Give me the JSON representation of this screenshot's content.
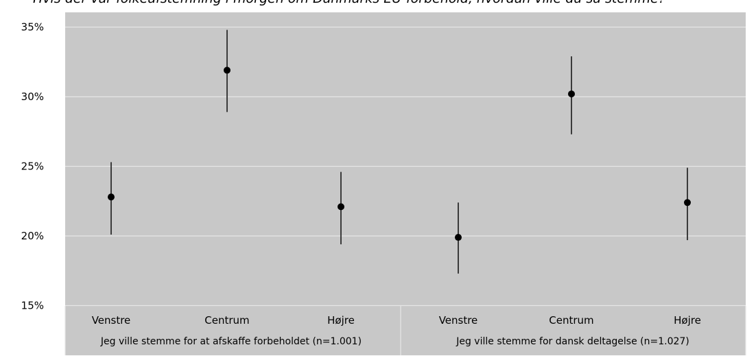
{
  "chart_data": {
    "type": "scatter",
    "title": "Hvis der var folkeafstemning i morgen om Danmarks EU-forbehold, hvordan ville du så stemme?",
    "ylim": [
      15,
      35
    ],
    "yticks": [
      15,
      20,
      25,
      30,
      35
    ],
    "ytick_labels": [
      "15%",
      "20%",
      "25%",
      "30%",
      "35%"
    ],
    "grid": true,
    "groups": [
      {
        "label": "Jeg ville stemme for at afskaffe forbeholdet (n=1.001)",
        "categories": [
          "Venstre",
          "Centrum",
          "Højre"
        ],
        "values": [
          22.8,
          31.9,
          22.1
        ],
        "lower": [
          20.1,
          28.9,
          19.4
        ],
        "upper": [
          25.3,
          34.8,
          24.6
        ]
      },
      {
        "label": "Jeg ville stemme for dansk deltagelse (n=1.027)",
        "categories": [
          "Venstre",
          "Centrum",
          "Højre"
        ],
        "values": [
          19.9,
          30.2,
          22.4
        ],
        "lower": [
          17.3,
          27.3,
          19.7
        ],
        "upper": [
          22.4,
          32.9,
          24.9
        ]
      }
    ]
  },
  "colors": {
    "panel": "#c8c8c8",
    "grid": "#e6e6e6",
    "separator": "#e6e6e6",
    "point": "#000000",
    "errorbar": "#2b2b2b"
  }
}
